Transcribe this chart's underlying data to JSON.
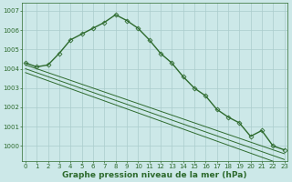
{
  "series": [
    {
      "x": [
        0,
        1,
        2,
        3,
        4,
        5,
        6,
        7,
        8,
        9,
        10,
        11,
        12,
        13,
        14,
        15,
        16,
        17,
        18,
        19,
        20,
        21,
        22,
        23
      ],
      "y": [
        1004.3,
        1004.1,
        1004.2,
        1004.8,
        1005.5,
        1005.8,
        1006.1,
        1006.4,
        1006.8,
        1006.5,
        1006.1,
        1005.5,
        1004.8,
        1004.3,
        1003.6,
        1003.0,
        1002.6,
        1001.9,
        1001.5,
        1001.2,
        1000.5,
        1000.8,
        1000.0,
        999.8
      ],
      "color": "#2d6a2d",
      "marker": "D",
      "markersize": 2.5,
      "linewidth": 1.0,
      "has_marker": true
    },
    {
      "x": [
        0,
        23
      ],
      "y": [
        1004.2,
        999.6
      ],
      "color": "#2d6a2d",
      "marker": null,
      "markersize": 0,
      "linewidth": 0.7,
      "has_marker": false
    },
    {
      "x": [
        0,
        23
      ],
      "y": [
        1004.0,
        999.3
      ],
      "color": "#2d6a2d",
      "marker": null,
      "markersize": 0,
      "linewidth": 0.7,
      "has_marker": false
    },
    {
      "x": [
        0,
        23
      ],
      "y": [
        1003.8,
        999.0
      ],
      "color": "#2d6a2d",
      "marker": null,
      "markersize": 0,
      "linewidth": 0.7,
      "has_marker": false
    }
  ],
  "background_color": "#cce8e8",
  "grid_color": "#aacccc",
  "xlabel": "Graphe pression niveau de la mer (hPa)",
  "xlabel_color": "#2d6a2d",
  "xlabel_fontsize": 6.5,
  "ylabel_ticks": [
    1000,
    1001,
    1002,
    1003,
    1004,
    1005,
    1006,
    1007
  ],
  "ylim": [
    999.2,
    1007.4
  ],
  "xlim": [
    -0.3,
    23.3
  ],
  "xticks": [
    0,
    1,
    2,
    3,
    4,
    5,
    6,
    7,
    8,
    9,
    10,
    11,
    12,
    13,
    14,
    15,
    16,
    17,
    18,
    19,
    20,
    21,
    22,
    23
  ],
  "tick_fontsize": 5.0,
  "tick_color": "#2d6a2d",
  "spine_color": "#2d6a2d"
}
